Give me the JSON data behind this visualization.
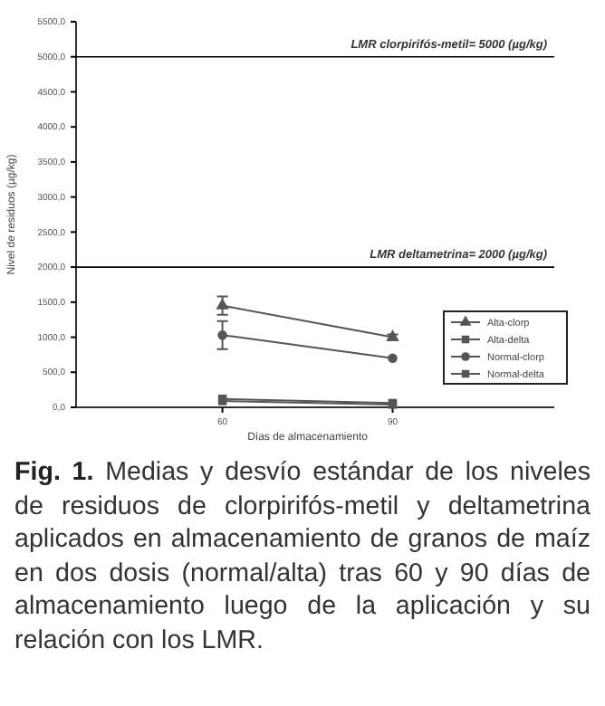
{
  "chart_data": {
    "type": "line",
    "xlabel": "Días de almacenamiento",
    "ylabel": "Nivel de residuos (µg/kg)",
    "categories": [
      "60",
      "90"
    ],
    "series": [
      {
        "name": "Alta-clorp",
        "color": "#555555",
        "marker": "triangle",
        "values": [
          1450,
          1000
        ],
        "errors": [
          130,
          40
        ]
      },
      {
        "name": "Alta-delta",
        "color": "#555555",
        "marker": "square",
        "values": [
          120,
          60
        ],
        "errors": [
          null,
          null
        ]
      },
      {
        "name": "Normal-clorp",
        "color": "#555555",
        "marker": "circle",
        "values": [
          1030,
          700
        ],
        "errors": [
          200,
          null
        ]
      },
      {
        "name": "Normal-delta",
        "color": "#555555",
        "marker": "square",
        "values": [
          90,
          40
        ],
        "errors": [
          null,
          null
        ]
      }
    ],
    "ylim": [
      0,
      5500
    ],
    "yticks": [
      {
        "value": 0,
        "label": "0,0"
      },
      {
        "value": 500,
        "label": "500,0"
      },
      {
        "value": 1000,
        "label": "1000,0"
      },
      {
        "value": 1500,
        "label": "1500,0"
      },
      {
        "value": 2000,
        "label": "2000,0"
      },
      {
        "value": 2500,
        "label": "2500,0"
      },
      {
        "value": 3000,
        "label": "3000,0"
      },
      {
        "value": 3500,
        "label": "3500,0"
      },
      {
        "value": 4000,
        "label": "4000,0"
      },
      {
        "value": 4500,
        "label": "4500,0"
      },
      {
        "value": 5000,
        "label": "5000,0"
      },
      {
        "value": 5500,
        "label": "5500,0"
      }
    ],
    "ref_lines": [
      {
        "axis": "y",
        "value": 5000,
        "label": "LMR clorpirifós-metil= 5000 (µg/kg)",
        "color": "#000000"
      },
      {
        "axis": "y",
        "value": 2000,
        "label": "LMR deltametrina= 2000 (µg/kg)",
        "color": "#000000"
      }
    ],
    "grid": false,
    "legend": "right",
    "line_style": "solid",
    "annotations": [
      "Fig. 1.",
      "Medias y desvío estándar de los niveles de residuos de clorpirifós-metil y deltametrina aplicados en almacenamiento de granos de maíz en dos dosis (normal/alta) tras 60 y 90 días de almacenamiento luego de la aplicación y su relación con  los LMR."
    ]
  }
}
